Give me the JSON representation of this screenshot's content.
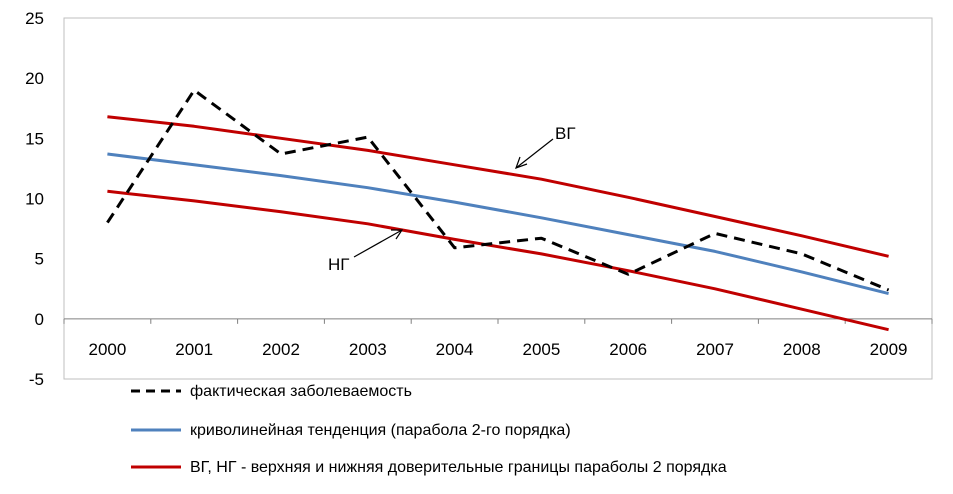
{
  "chart_data": {
    "type": "line",
    "categories": [
      "2000",
      "2001",
      "2002",
      "2003",
      "2004",
      "2005",
      "2006",
      "2007",
      "2008",
      "2009"
    ],
    "ylim": [
      -5,
      25
    ],
    "yticks": [
      -5,
      0,
      5,
      10,
      15,
      20,
      25
    ],
    "grid": false,
    "legend_position": "bottom",
    "series": [
      {
        "name": "фактическая заболеваемость",
        "style": "dashed",
        "color": "#000000",
        "values": [
          8.0,
          19.0,
          13.7,
          15.1,
          5.9,
          6.7,
          3.7,
          7.1,
          5.4,
          2.4
        ]
      },
      {
        "name": "криволинейная тенденция (парабола 2-го порядка)",
        "style": "solid",
        "color": "#4F81BD",
        "values": [
          13.7,
          12.8,
          11.9,
          10.9,
          9.7,
          8.4,
          7.0,
          5.6,
          3.9,
          2.1
        ]
      },
      {
        "name": "ВГ, НГ - верхняя и нижняя доверительные границы параболы 2 порядка",
        "style": "solid",
        "color": "#C00000",
        "bounds": {
          "upper": [
            16.8,
            16.0,
            15.0,
            14.0,
            12.8,
            11.6,
            10.1,
            8.5,
            6.9,
            5.2
          ],
          "lower": [
            10.6,
            9.8,
            8.9,
            7.9,
            6.6,
            5.4,
            4.0,
            2.5,
            0.8,
            -0.9
          ]
        }
      }
    ],
    "annotations": [
      {
        "text": "ВГ",
        "target_series": "upper",
        "target_x": "2005"
      },
      {
        "text": "НГ",
        "target_series": "lower",
        "target_x": "2003"
      }
    ]
  }
}
